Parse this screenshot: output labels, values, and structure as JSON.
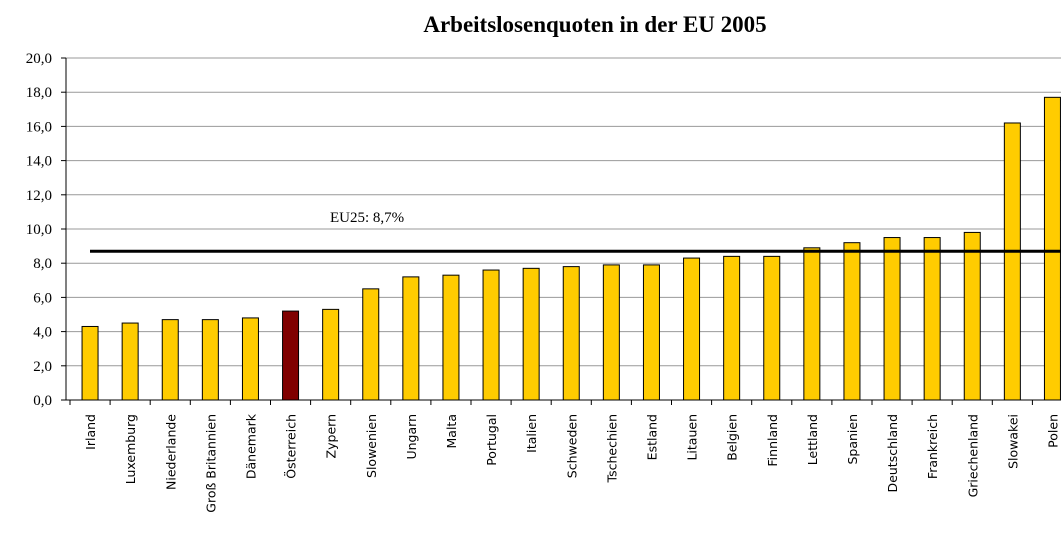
{
  "chart_data": {
    "type": "bar",
    "title": "Arbeitslosenquoten in der EU 2005",
    "categories": [
      "Irland",
      "Luxemburg",
      "Niederlande",
      "Groß Britannien",
      "Dänemark",
      "Österreich",
      "Zypern",
      "Slowenien",
      "Ungarn",
      "Malta",
      "Portugal",
      "Italien",
      "Schweden",
      "Tschechien",
      "Estland",
      "Litauen",
      "Belgien",
      "Finnland",
      "Lettland",
      "Spanien",
      "Deutschland",
      "Frankreich",
      "Griechenland",
      "Slowakei",
      "Polen"
    ],
    "values": [
      4.3,
      4.5,
      4.7,
      4.7,
      4.8,
      5.2,
      5.3,
      6.5,
      7.2,
      7.3,
      7.6,
      7.7,
      7.8,
      7.9,
      7.9,
      8.3,
      8.4,
      8.4,
      8.9,
      9.2,
      9.5,
      9.5,
      9.8,
      16.2,
      17.7
    ],
    "colors": [
      "#ffcc00",
      "#ffcc00",
      "#ffcc00",
      "#ffcc00",
      "#ffcc00",
      "#800000",
      "#ffcc00",
      "#ffcc00",
      "#ffcc00",
      "#ffcc00",
      "#ffcc00",
      "#ffcc00",
      "#ffcc00",
      "#ffcc00",
      "#ffcc00",
      "#ffcc00",
      "#ffcc00",
      "#ffcc00",
      "#ffcc00",
      "#ffcc00",
      "#ffcc00",
      "#ffcc00",
      "#ffcc00",
      "#ffcc00",
      "#ffcc00"
    ],
    "reference_line": {
      "value": 8.7,
      "label": "EU25: 8,7%"
    },
    "ylim": [
      0,
      20
    ],
    "yticks": [
      {
        "value": 0,
        "label": "0,0"
      },
      {
        "value": 2,
        "label": "2,0"
      },
      {
        "value": 4,
        "label": "4,0"
      },
      {
        "value": 6,
        "label": "6,0"
      },
      {
        "value": 8,
        "label": "8,0"
      },
      {
        "value": 10,
        "label": "10,0"
      },
      {
        "value": 12,
        "label": "12,0"
      },
      {
        "value": 14,
        "label": "14,0"
      },
      {
        "value": 16,
        "label": "16,0"
      },
      {
        "value": 18,
        "label": "18,0"
      },
      {
        "value": 20,
        "label": "20,0"
      }
    ],
    "grid": true
  }
}
